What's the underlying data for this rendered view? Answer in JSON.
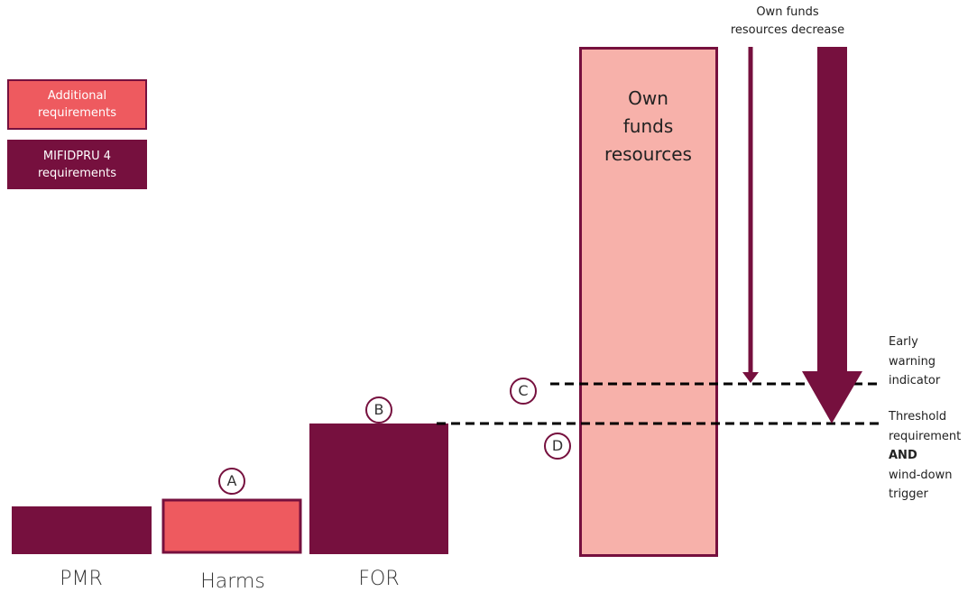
{
  "legend": [
    {
      "label": "Additional requirements"
    },
    {
      "label": "MIFIDPRU 4 requirements"
    }
  ],
  "bars": [
    {
      "label": "PMR"
    },
    {
      "label": "Harms"
    },
    {
      "label": "FOR"
    }
  ],
  "markers": [
    "A",
    "B",
    "C",
    "D"
  ],
  "own_funds": {
    "lines": [
      "Own",
      "funds",
      "resources"
    ]
  },
  "arrow_label": {
    "lines": [
      "Own funds",
      "resources decrease"
    ]
  },
  "indicators": [
    {
      "lines": [
        "Early",
        "warning",
        "indicator"
      ]
    },
    {
      "lines": [
        "Threshold",
        "requirement",
        "AND",
        "wind-down",
        "trigger"
      ]
    }
  ]
}
